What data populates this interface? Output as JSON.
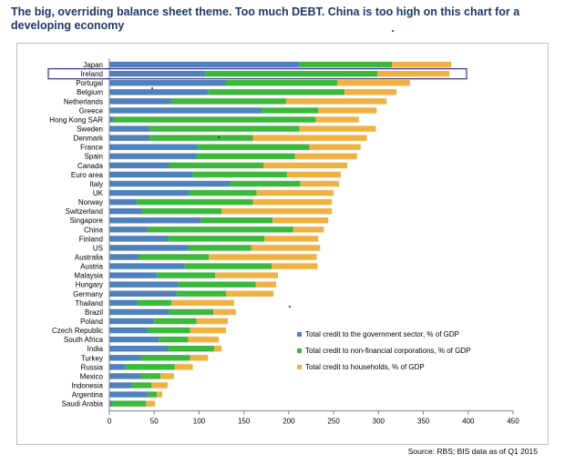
{
  "title": "The big, overriding balance sheet theme. Too much DEBT. China is too high on this chart for a developing economy",
  "source": "Source:  RBS; BIS data as of Q1 2015",
  "colors": {
    "government": "#4f81bd",
    "corporations": "#3cb93c",
    "households": "#f0b143",
    "highlight_box": "#3a2a8c",
    "axis": "#808080"
  },
  "chart_data": {
    "type": "bar",
    "orientation": "horizontal",
    "stacked": true,
    "highlighted_category": "Ireland",
    "categories": [
      "Japan",
      "Ireland",
      "Portugal",
      "Belgium",
      "Netherlands",
      "Greece",
      "Hong Kong SAR",
      "Sweden",
      "Denmark",
      "France",
      "Spain",
      "Canada",
      "Euro area",
      "Italy",
      "UK",
      "Norway",
      "Switzerland",
      "Singapore",
      "China",
      "Finland",
      "US",
      "Australia",
      "Austria",
      "Malaysia",
      "Hungary",
      "Germany",
      "Thailand",
      "Brazil",
      "Poland",
      "Czech Republic",
      "South Africa",
      "India",
      "Turkey",
      "Russia",
      "Mexico",
      "Indonesia",
      "Argentina",
      "Saudi Arabia"
    ],
    "series": [
      {
        "name": "Total credit to the government sector, % of GDP",
        "values": [
          212,
          107,
          130,
          110,
          70,
          170,
          5,
          45,
          45,
          98,
          97,
          67,
          93,
          135,
          89,
          30,
          36,
          102,
          43,
          65,
          88,
          33,
          84,
          53,
          77,
          75,
          31,
          66,
          50,
          43,
          55,
          65,
          35,
          18,
          35,
          25,
          43,
          3
        ]
      },
      {
        "name": "Total credit to non-financial corporations, % of GDP",
        "values": [
          103,
          192,
          124,
          152,
          127,
          63,
          225,
          167,
          115,
          125,
          110,
          105,
          105,
          78,
          75,
          130,
          89,
          80,
          162,
          108,
          70,
          78,
          97,
          65,
          86,
          55,
          38,
          50,
          47,
          47,
          33,
          52,
          55,
          55,
          22,
          22,
          10,
          38
        ]
      },
      {
        "name": "Total credit to households, % of GDP",
        "values": [
          66,
          80,
          81,
          58,
          112,
          65,
          48,
          85,
          127,
          57,
          69,
          93,
          60,
          43,
          86,
          88,
          123,
          62,
          34,
          60,
          77,
          120,
          51,
          70,
          23,
          53,
          70,
          25,
          35,
          40,
          34,
          8,
          20,
          20,
          15,
          18,
          6,
          10
        ]
      }
    ],
    "xlim": [
      0,
      450
    ],
    "xticks": [
      0,
      50,
      100,
      150,
      200,
      250,
      300,
      350,
      400,
      450
    ],
    "grid": false,
    "legend_position": "lower-right inside plot"
  }
}
